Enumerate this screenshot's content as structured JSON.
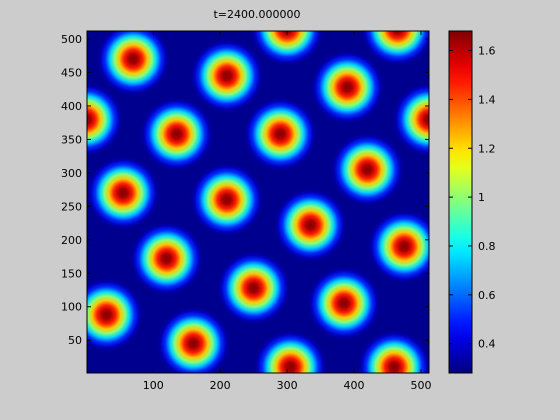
{
  "chart_data": {
    "type": "heatmap",
    "title": "t=2400.000000",
    "xlabel": "",
    "ylabel": "",
    "xlim": [
      1,
      512
    ],
    "ylim": [
      1,
      512
    ],
    "xticks": [
      100,
      200,
      300,
      400,
      500
    ],
    "yticks": [
      50,
      100,
      150,
      200,
      250,
      300,
      350,
      400,
      450,
      500
    ],
    "colormap": "jet",
    "colorbar": {
      "range": [
        0.28,
        1.68
      ],
      "ticks": [
        0.4,
        0.6,
        0.8,
        1.0,
        1.2,
        1.4,
        1.6
      ],
      "tick_labels": [
        "0.4",
        "0.6",
        "0.8",
        "1",
        "1.2",
        "1.4",
        "1.6"
      ]
    },
    "field": {
      "background": 0.3,
      "peak": 1.68,
      "spot_radius": 22
    },
    "spots": [
      {
        "x": 70,
        "y": 470
      },
      {
        "x": 210,
        "y": 445
      },
      {
        "x": 300,
        "y": 515
      },
      {
        "x": 390,
        "y": 428
      },
      {
        "x": 465,
        "y": 515
      },
      {
        "x": 0,
        "y": 380
      },
      {
        "x": 135,
        "y": 358
      },
      {
        "x": 290,
        "y": 358
      },
      {
        "x": 512,
        "y": 380
      },
      {
        "x": 55,
        "y": 270
      },
      {
        "x": 210,
        "y": 260
      },
      {
        "x": 420,
        "y": 305
      },
      {
        "x": 335,
        "y": 222
      },
      {
        "x": 120,
        "y": 172
      },
      {
        "x": 475,
        "y": 190
      },
      {
        "x": 250,
        "y": 128
      },
      {
        "x": 30,
        "y": 88
      },
      {
        "x": 385,
        "y": 105
      },
      {
        "x": 160,
        "y": 45
      },
      {
        "x": 305,
        "y": 10
      },
      {
        "x": 460,
        "y": 10
      }
    ]
  }
}
